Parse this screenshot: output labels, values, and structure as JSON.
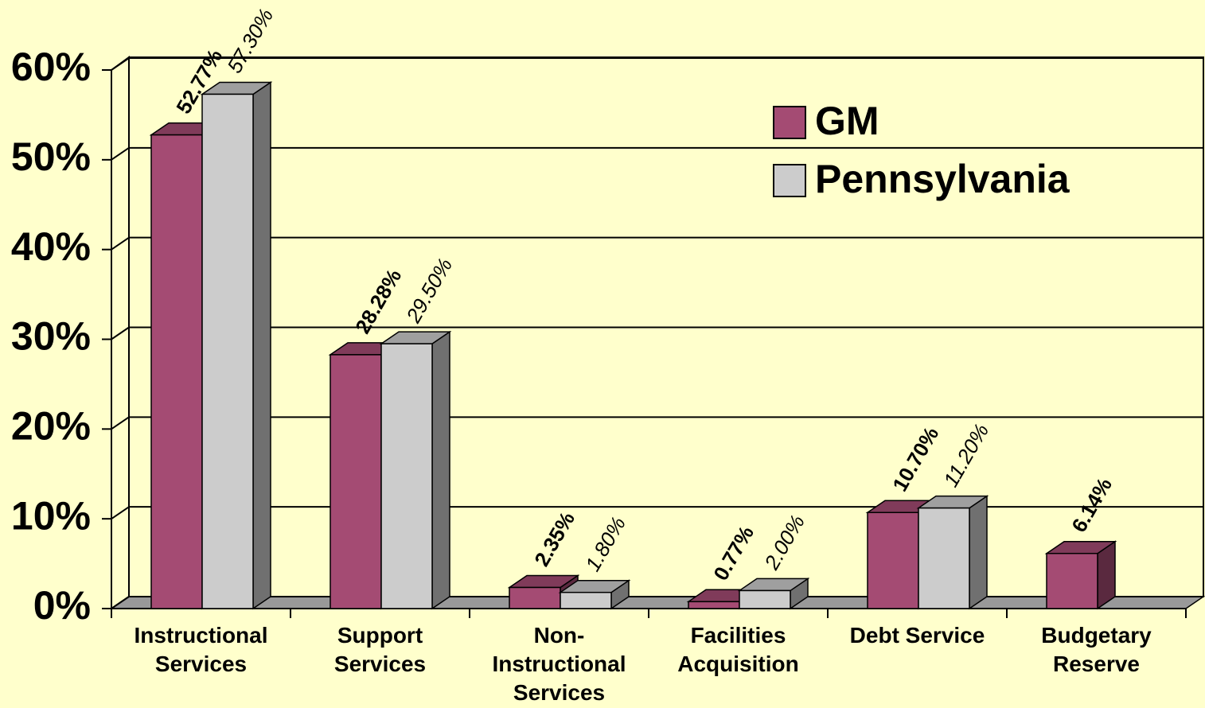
{
  "chart_data": {
    "type": "bar3d",
    "categories": [
      "Instructional\nServices",
      "Support\nServices",
      "Non-\nInstructional\nServices",
      "Facilities\nAcquisition",
      "Debt Service",
      "Budgetary\nReserve"
    ],
    "series": [
      {
        "name": "GM",
        "color": "#a44b73",
        "values": [
          52.77,
          28.28,
          2.35,
          0.77,
          10.7,
          6.14
        ],
        "value_labels": [
          "52.77%",
          "28.28%",
          "2.35%",
          "0.77%",
          "10.70%",
          "6.14%"
        ]
      },
      {
        "name": "Pennsylvania",
        "color": "#cccccc",
        "values": [
          57.3,
          29.5,
          1.8,
          2.0,
          11.2,
          null
        ],
        "value_labels": [
          "57.30%",
          "29.50%",
          "1.80%",
          "2.00%",
          "11.20%",
          null
        ]
      }
    ],
    "ylim": [
      0,
      60
    ],
    "yticks": [
      {
        "value": 0,
        "label": "0%"
      },
      {
        "value": 10,
        "label": "10%"
      },
      {
        "value": 20,
        "label": "20%"
      },
      {
        "value": 30,
        "label": "30%"
      },
      {
        "value": 40,
        "label": "40%"
      },
      {
        "value": 50,
        "label": "50%"
      },
      {
        "value": 60,
        "label": "60%"
      }
    ],
    "grid": true,
    "legend": "upper right"
  }
}
